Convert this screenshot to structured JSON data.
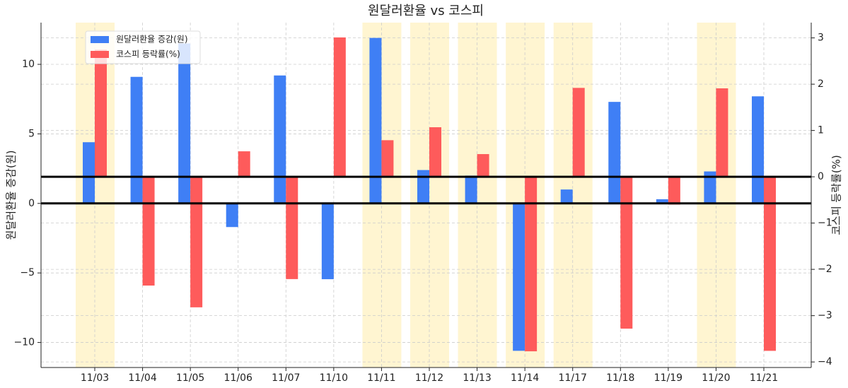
{
  "chart_data": {
    "type": "bar",
    "title": "원달러환율 vs 코스피",
    "y_label": "원달러환율 증감(원)",
    "y2_label": "코스피 등락률(%)",
    "categories": [
      "11/03",
      "11/04",
      "11/05",
      "11/06",
      "11/07",
      "11/10",
      "11/11",
      "11/12",
      "11/13",
      "11/14",
      "11/17",
      "11/18",
      "11/19",
      "11/20",
      "11/21"
    ],
    "highlight": [
      true,
      false,
      false,
      false,
      false,
      false,
      true,
      true,
      true,
      true,
      true,
      false,
      false,
      true,
      false
    ],
    "highlight_color": "#fff5d1",
    "series": [
      {
        "name": "원달러환율 증감(원)",
        "color": "#3f7ff5",
        "values": [
          4.4,
          9.1,
          11.5,
          -1.7,
          9.2,
          -5.45,
          11.9,
          2.4,
          2.0,
          -10.6,
          1.0,
          7.3,
          0.3,
          2.3,
          7.7
        ]
      },
      {
        "name": "코스피 등락률(%)",
        "color": "#fe5b5b",
        "axis": "y2",
        "values": [
          2.75,
          -2.35,
          -2.82,
          0.55,
          -2.21,
          3.01,
          0.79,
          1.07,
          0.49,
          -3.77,
          1.92,
          -3.28,
          -0.6,
          1.91,
          -3.76
        ]
      }
    ],
    "ylim": [
      -11.8,
      13.0
    ],
    "yticks": [
      {
        "value": -10,
        "label": "−10"
      },
      {
        "value": -5,
        "label": "−5"
      },
      0,
      5,
      10
    ],
    "y2lim": [
      -4.12,
      3.33
    ],
    "y2ticks": [
      {
        "value": -4,
        "label": "−4"
      },
      {
        "value": -3,
        "label": "−3"
      },
      {
        "value": -2,
        "label": "−2"
      },
      {
        "value": -1,
        "label": "−1"
      },
      0,
      1,
      2,
      3
    ],
    "grid": true,
    "legend": "upper left"
  }
}
